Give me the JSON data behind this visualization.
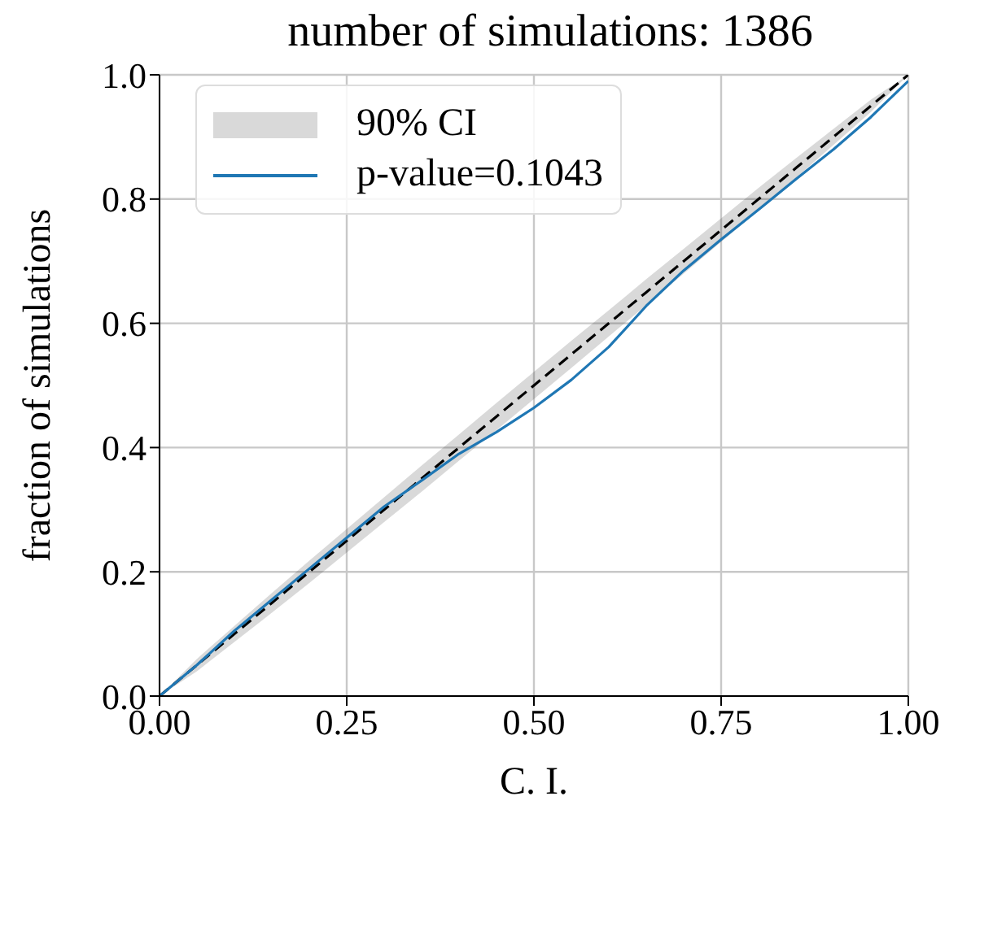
{
  "chart_data": {
    "type": "line",
    "title": "number of simulations: 1386",
    "xlabel": "C. I.",
    "ylabel": "fraction of simulations",
    "x": [
      0,
      0.05,
      0.1,
      0.15,
      0.2,
      0.25,
      0.3,
      0.35,
      0.4,
      0.45,
      0.5,
      0.55,
      0.6,
      0.65,
      0.7,
      0.75,
      0.8,
      0.85,
      0.9,
      0.95,
      1
    ],
    "series": [
      {
        "name": "90% CI",
        "color": "#000000",
        "line_style": "dashed",
        "values": [
          0,
          0.05,
          0.1,
          0.15,
          0.2,
          0.25,
          0.3,
          0.35,
          0.4,
          0.45,
          0.5,
          0.55,
          0.6,
          0.65,
          0.7,
          0.75,
          0.8,
          0.85,
          0.9,
          0.95,
          1
        ],
        "lower": [
          0,
          0.04,
          0.087,
          0.134,
          0.182,
          0.231,
          0.28,
          0.329,
          0.379,
          0.428,
          0.478,
          0.528,
          0.579,
          0.629,
          0.68,
          0.731,
          0.782,
          0.834,
          0.887,
          0.94,
          1
        ],
        "upper": [
          0,
          0.06,
          0.113,
          0.166,
          0.218,
          0.269,
          0.32,
          0.371,
          0.421,
          0.472,
          0.522,
          0.572,
          0.621,
          0.671,
          0.72,
          0.769,
          0.818,
          0.866,
          0.913,
          0.96,
          1
        ]
      },
      {
        "name": "p-value=0.1043",
        "color": "#1f77b4",
        "line_style": "solid",
        "values": [
          0,
          0.05,
          0.105,
          0.155,
          0.205,
          0.255,
          0.305,
          0.347,
          0.39,
          0.425,
          0.464,
          0.509,
          0.562,
          0.628,
          0.685,
          0.735,
          0.783,
          0.832,
          0.88,
          0.932,
          0.99
        ]
      }
    ],
    "xlim": [
      0,
      1
    ],
    "ylim": [
      0,
      1
    ],
    "xticks": [
      {
        "value": 0,
        "label": "0.00"
      },
      {
        "value": 0.25,
        "label": "0.25"
      },
      {
        "value": 0.5,
        "label": "0.50"
      },
      {
        "value": 0.75,
        "label": "0.75"
      },
      {
        "value": 1,
        "label": "1.00"
      }
    ],
    "yticks": [
      {
        "value": 0,
        "label": "0.0"
      },
      {
        "value": 0.2,
        "label": "0.2"
      },
      {
        "value": 0.4,
        "label": "0.4"
      },
      {
        "value": 0.6,
        "label": "0.6"
      },
      {
        "value": 0.8,
        "label": "0.8"
      },
      {
        "value": 1,
        "label": "1.0"
      }
    ],
    "grid": true,
    "legend": "top left",
    "marker": "none"
  }
}
